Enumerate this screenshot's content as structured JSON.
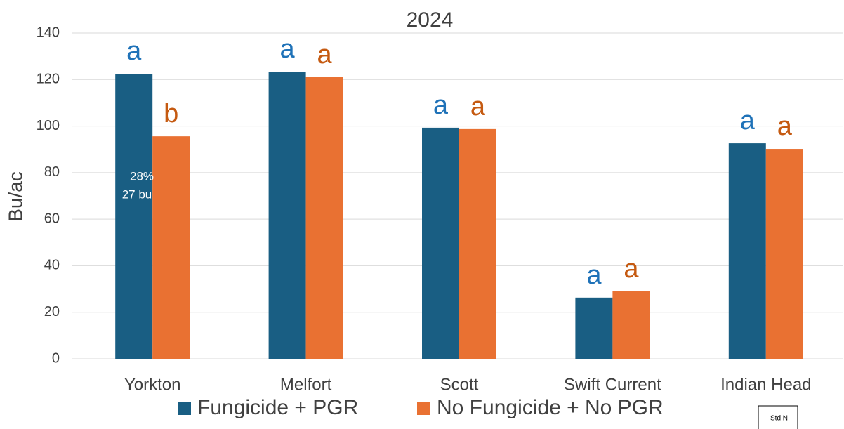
{
  "chart_data": {
    "type": "bar",
    "title": "2024",
    "y_label": "Bu/ac",
    "categories": [
      "Yorkton",
      "Melfort",
      "Scott",
      "Swift Current",
      "Indian Head"
    ],
    "series": [
      {
        "name": "Fungicide + PGR",
        "color": "#195e83",
        "letter_color": "#1f72b8",
        "values": [
          122.5,
          123.4,
          99.3,
          26.3,
          92.6
        ],
        "letters": [
          "a",
          "a",
          "a",
          "a",
          "a"
        ]
      },
      {
        "name": "No Fungicide + No PGR",
        "color": "#e97132",
        "letter_color": "#c55a11",
        "values": [
          95.6,
          121.0,
          98.7,
          29.0,
          90.2
        ],
        "letters": [
          "b",
          "a",
          "a",
          "a",
          "a"
        ]
      }
    ],
    "ylim": [
      0,
      140
    ],
    "yticks": [
      0,
      20,
      40,
      60,
      80,
      100,
      120,
      140
    ],
    "grid": true,
    "annotations": [
      "28%",
      "27 bu"
    ],
    "note": "Std N"
  }
}
